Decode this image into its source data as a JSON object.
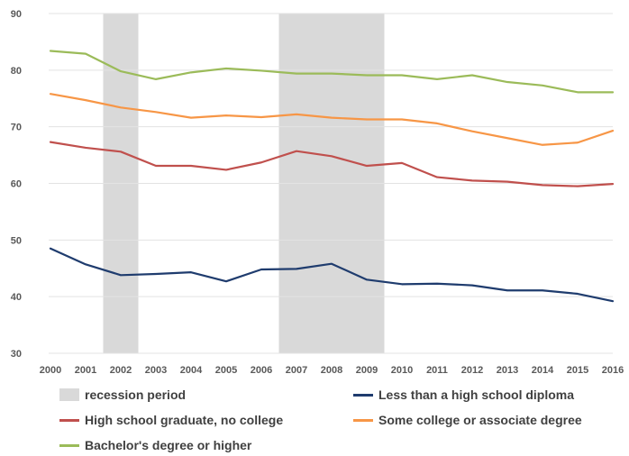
{
  "chart_data": {
    "type": "line",
    "x": [
      "2000",
      "2001",
      "2002",
      "2003",
      "2004",
      "2005",
      "2006",
      "2007",
      "2008",
      "2009",
      "2010",
      "2011",
      "2012",
      "2013",
      "2014",
      "2015",
      "2016"
    ],
    "ylim": [
      30,
      90
    ],
    "yticks": [
      30,
      40,
      50,
      60,
      70,
      80,
      90
    ],
    "grid": true,
    "recessions": [
      {
        "start": 2001.5,
        "end": 2002.5
      },
      {
        "start": 2006.5,
        "end": 2009.5
      }
    ],
    "recession_label": "recession period",
    "recession_color": "#d9d9d9",
    "series": [
      {
        "name": "Less than a high school diploma",
        "color": "#1f3c6e",
        "values": [
          48.5,
          45.7,
          43.8,
          44.0,
          44.3,
          42.7,
          44.8,
          44.9,
          45.8,
          43.0,
          42.2,
          42.3,
          42.0,
          41.1,
          41.1,
          40.5,
          39.2
        ]
      },
      {
        "name": "High school graduate, no college",
        "color": "#c0504d",
        "values": [
          67.3,
          66.3,
          65.6,
          63.1,
          63.1,
          62.4,
          63.7,
          65.7,
          64.8,
          63.1,
          63.6,
          61.1,
          60.5,
          60.3,
          59.7,
          59.5,
          59.9
        ]
      },
      {
        "name": "Some college or associate degree",
        "color": "#f79646",
        "values": [
          75.8,
          74.7,
          73.4,
          72.6,
          71.6,
          72.0,
          71.7,
          72.2,
          71.6,
          71.3,
          71.3,
          70.6,
          69.2,
          68.0,
          66.8,
          67.2,
          69.3
        ]
      },
      {
        "name": "Bachelor's degree or higher",
        "color": "#9bbb59",
        "values": [
          83.4,
          82.9,
          79.8,
          78.4,
          79.6,
          80.3,
          79.9,
          79.4,
          79.4,
          79.1,
          79.1,
          78.4,
          79.1,
          77.9,
          77.3,
          76.1,
          76.1
        ]
      }
    ]
  }
}
